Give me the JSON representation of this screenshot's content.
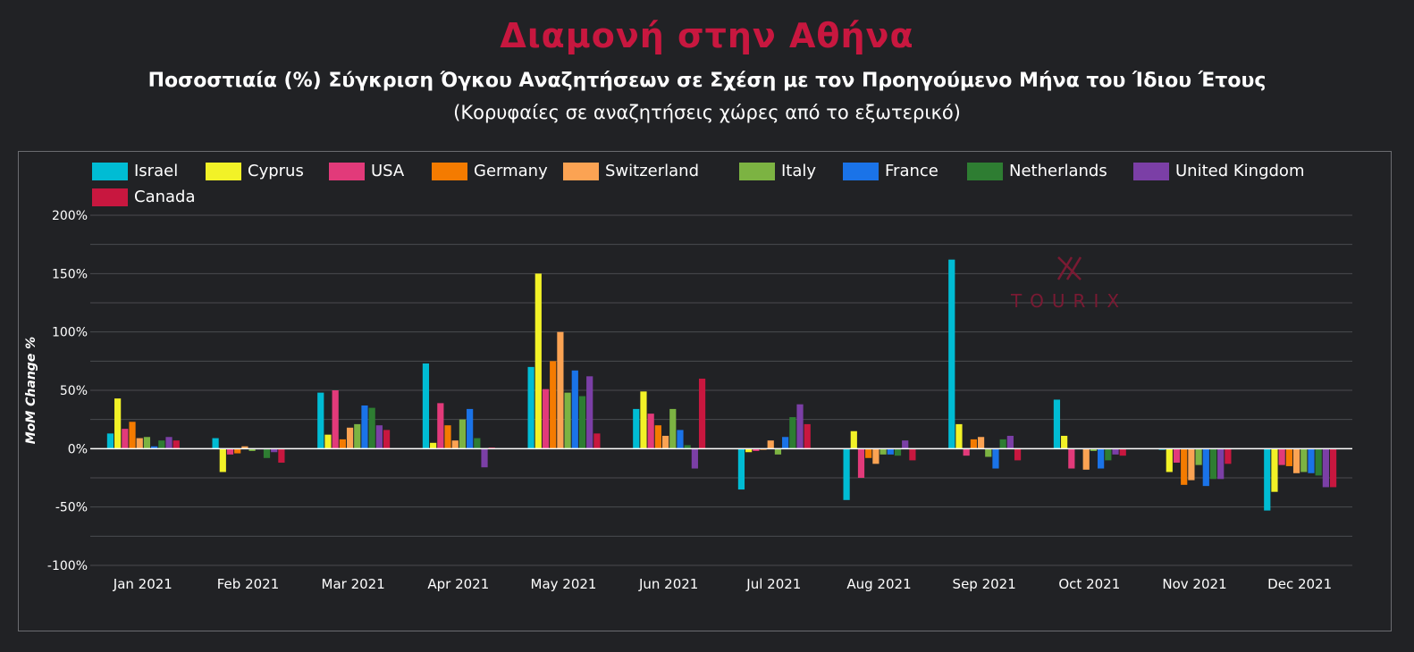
{
  "header": {
    "title": "Διαμονή στην Αθήνα",
    "subtitle": "Ποσοστιαία (%) Σύγκριση Όγκου Αναζητήσεων σε Σχέση με τον Προηγούμενο Μήνα του Ίδιου Έτους",
    "subtitle2": "(Κορυφαίες σε αναζητήσεις χώρες από το εξωτερικό)"
  },
  "watermark": {
    "text": "TOURIX"
  },
  "chart_data": {
    "type": "bar",
    "ylabel": "MoM Change %",
    "ylim": [
      -100,
      200
    ],
    "yticks": [
      200,
      150,
      100,
      50,
      0,
      -50,
      -100
    ],
    "ytick_labels": [
      "200%",
      "150%",
      "100%",
      "50%",
      "0%",
      "-50%",
      "-100%"
    ],
    "grid": true,
    "legend_position": "top-left",
    "categories": [
      "Jan 2021",
      "Feb 2021",
      "Mar 2021",
      "Apr 2021",
      "May 2021",
      "Jun 2021",
      "Jul 2021",
      "Aug 2021",
      "Sep 2021",
      "Oct 2021",
      "Nov 2021",
      "Dec 2021"
    ],
    "series": [
      {
        "name": "Israel",
        "color": "#00bcd4",
        "values": [
          13,
          9,
          48,
          73,
          70,
          34,
          -35,
          -44,
          162,
          42,
          -1,
          -53
        ]
      },
      {
        "name": "Cyprus",
        "color": "#f2f227",
        "values": [
          43,
          -20,
          12,
          5,
          150,
          49,
          -3,
          15,
          21,
          11,
          -20,
          -37
        ]
      },
      {
        "name": "USA",
        "color": "#e23a7a",
        "values": [
          17,
          -5,
          50,
          39,
          51,
          30,
          -2,
          -25,
          -6,
          -17,
          -12,
          -14
        ]
      },
      {
        "name": "Germany",
        "color": "#f47b00",
        "values": [
          23,
          -4,
          8,
          20,
          75,
          20,
          -1,
          -8,
          8,
          0,
          -31,
          -15
        ]
      },
      {
        "name": "Switzerland",
        "color": "#fba353",
        "values": [
          9,
          2,
          18,
          7,
          100,
          11,
          7,
          -13,
          10,
          -18,
          -27,
          -21
        ]
      },
      {
        "name": "Italy",
        "color": "#7cb342",
        "values": [
          10,
          -2,
          21,
          25,
          48,
          34,
          -5,
          -5,
          -7,
          -2,
          -14,
          -20
        ]
      },
      {
        "name": "France",
        "color": "#1a73e8",
        "values": [
          2,
          0,
          37,
          34,
          67,
          16,
          10,
          -5,
          -17,
          -17,
          -32,
          -21
        ]
      },
      {
        "name": "Netherlands",
        "color": "#2e7d32",
        "values": [
          7,
          -8,
          35,
          9,
          45,
          3,
          27,
          -6,
          8,
          -10,
          -26,
          -23
        ]
      },
      {
        "name": "United Kingdom",
        "color": "#7b3fa6",
        "values": [
          10,
          -3,
          20,
          -16,
          62,
          -17,
          38,
          7,
          11,
          -5,
          -26,
          -33
        ]
      },
      {
        "name": "Canada",
        "color": "#c8173f",
        "values": [
          7,
          -12,
          16,
          1,
          13,
          60,
          21,
          -10,
          -10,
          -6,
          -13,
          -33
        ]
      }
    ]
  }
}
